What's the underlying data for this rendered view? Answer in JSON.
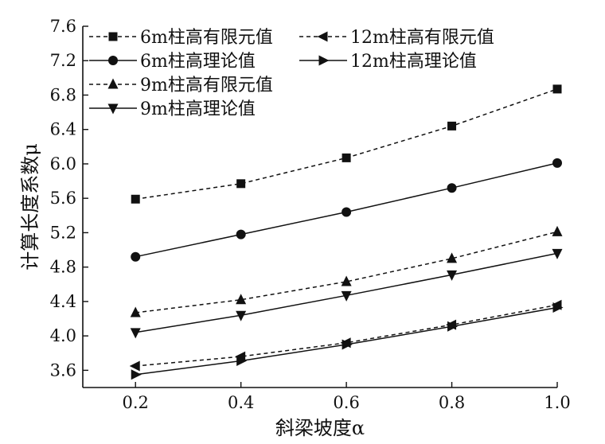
{
  "chart_data": {
    "type": "line",
    "xlabel": "斜梁坡度α",
    "ylabel": "计算长度系数μ",
    "xlim": [
      0.1,
      1.0
    ],
    "ylim": [
      3.4,
      7.6
    ],
    "x_ticks": [
      "0.2",
      "0.4",
      "0.6",
      "0.8",
      "1.0"
    ],
    "y_ticks": [
      "3.6",
      "4.0",
      "4.4",
      "4.8",
      "5.2",
      "5.6",
      "6.0",
      "6.4",
      "6.8",
      "7.2",
      "7.6"
    ],
    "grid": false,
    "legend_position": "top-left",
    "x": [
      0.2,
      0.4,
      0.6,
      0.8,
      1.0
    ],
    "series": [
      {
        "name": "6m柱高有限元值",
        "values": [
          5.59,
          5.77,
          6.07,
          6.44,
          6.87
        ],
        "marker": "square",
        "line": "dashed",
        "color": "#111111"
      },
      {
        "name": "6m柱高理论值",
        "values": [
          4.92,
          5.18,
          5.44,
          5.72,
          6.01
        ],
        "marker": "circle",
        "line": "solid",
        "color": "#111111"
      },
      {
        "name": "9m柱高有限元值",
        "values": [
          4.27,
          4.42,
          4.63,
          4.9,
          5.21
        ],
        "marker": "triangle-up",
        "line": "dashed",
        "color": "#111111"
      },
      {
        "name": "9m柱高理论值",
        "values": [
          4.04,
          4.24,
          4.47,
          4.71,
          4.96
        ],
        "marker": "triangle-down",
        "line": "solid",
        "color": "#111111"
      },
      {
        "name": "12m柱高有限元值",
        "values": [
          3.65,
          3.76,
          3.92,
          4.13,
          4.36
        ],
        "marker": "triangle-left",
        "line": "dashed",
        "color": "#111111"
      },
      {
        "name": "12m柱高理论值",
        "values": [
          3.55,
          3.71,
          3.9,
          4.11,
          4.33
        ],
        "marker": "triangle-right",
        "line": "solid",
        "color": "#111111"
      }
    ]
  }
}
